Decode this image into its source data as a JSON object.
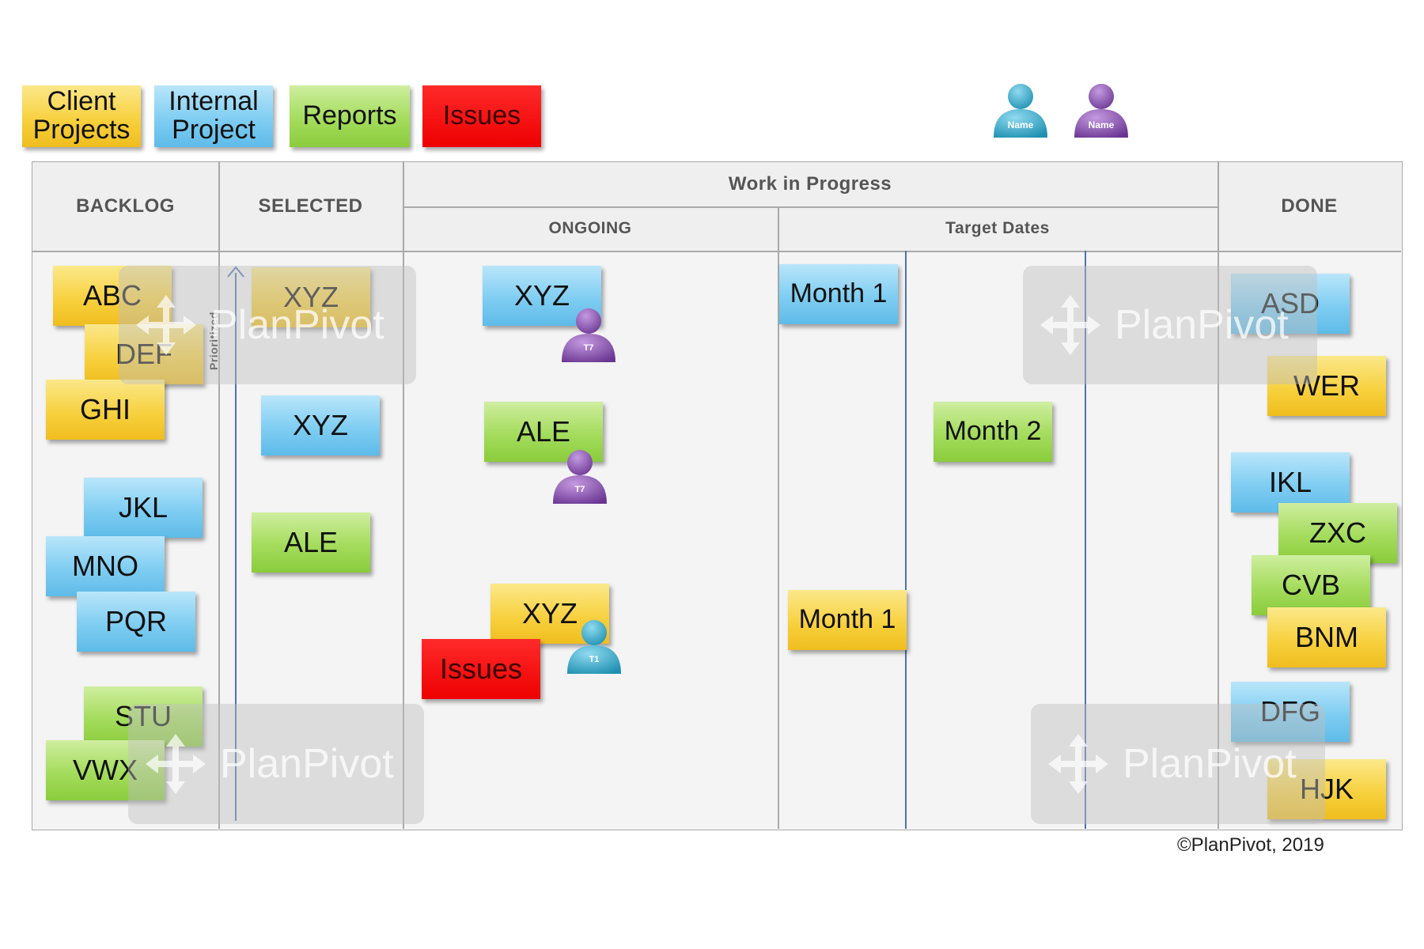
{
  "legend": {
    "client": "Client\nProjects",
    "internal": "Internal\nProject",
    "reports": "Reports",
    "issues": "Issues"
  },
  "people": [
    {
      "label": "Name",
      "color": "#2fa3c1"
    },
    {
      "label": "Name",
      "color": "#8a4fb0"
    }
  ],
  "columns": {
    "backlog": "BACKLOG",
    "selected": "SELECTED",
    "wip": "Work in Progress",
    "ongoing": "ONGOING",
    "target_dates": "Target Dates",
    "done": "DONE"
  },
  "prioritized_label": "Prioritized",
  "backlog": [
    "ABC",
    "DEF",
    "GHI",
    "JKL",
    "MNO",
    "PQR",
    "STU",
    "VWX"
  ],
  "selected": [
    "XYZ",
    "XYZ",
    "ALE"
  ],
  "ongoing": [
    {
      "label": "XYZ",
      "assignee": "T7"
    },
    {
      "label": "ALE",
      "assignee": "T7"
    },
    {
      "label": "XYZ",
      "assignee": "T1"
    }
  ],
  "ongoing_issue": "Issues",
  "target_dates": [
    "Month 1",
    "Month 2",
    "Month 1"
  ],
  "done": [
    "ASD",
    "WER",
    "IKL",
    "ZXC",
    "CVB",
    "BNM",
    "DFG",
    "HJK"
  ],
  "watermark": "PlanPivot",
  "copyright": "©PlanPivot, 2019",
  "colors": {
    "client_yellow": "#f7cf3a",
    "internal_blue": "#7fcdf2",
    "reports_green": "#a4dc5c",
    "issues_red": "#ee0000",
    "person_teal": "#2fa3c1",
    "person_purple": "#8a4fb0"
  }
}
